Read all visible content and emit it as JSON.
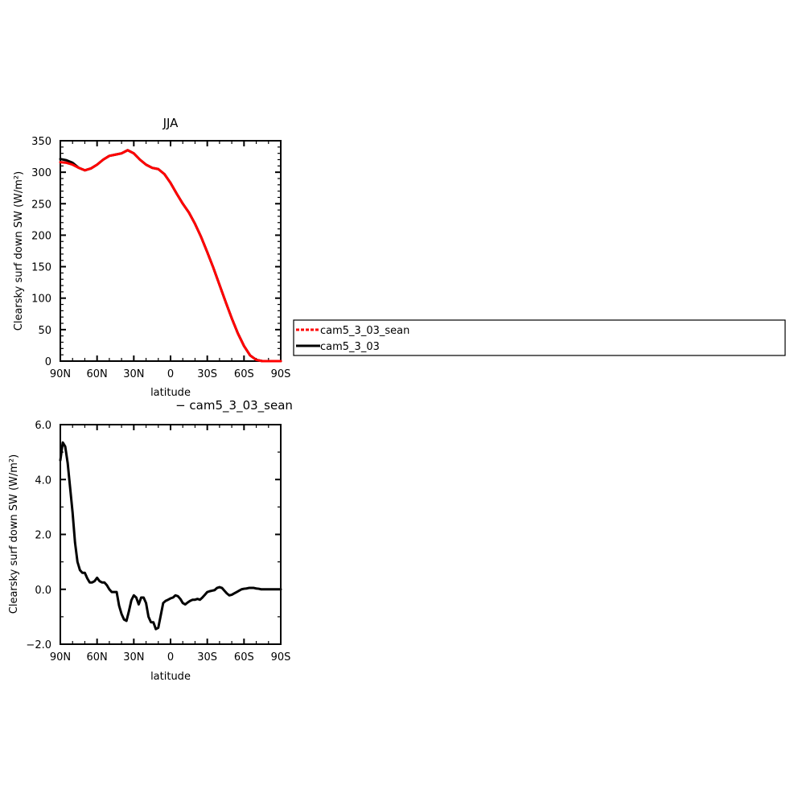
{
  "chart_data": [
    {
      "type": "line",
      "title": "JJA",
      "xlabel": "latitude",
      "ylabel": "Clearsky surf down SW (W/m²)",
      "xlim": [
        90,
        -90
      ],
      "ylim": [
        0,
        350
      ],
      "xticks": [
        90,
        60,
        30,
        0,
        -30,
        -60,
        -90
      ],
      "xtick_labels": [
        "90N",
        "60N",
        "30N",
        "0",
        "30S",
        "60S",
        "90S"
      ],
      "yticks": [
        0,
        50,
        100,
        150,
        200,
        250,
        300,
        350
      ],
      "ytick_labels": [
        "0",
        "50",
        "100",
        "150",
        "200",
        "250",
        "300",
        "350"
      ],
      "series": [
        {
          "name": "cam5_3_03_sean",
          "color": "#ff0000",
          "x": [
            90,
            85,
            80,
            75,
            70,
            65,
            60,
            55,
            50,
            45,
            40,
            35,
            30,
            25,
            20,
            15,
            10,
            5,
            0,
            -5,
            -10,
            -15,
            -20,
            -25,
            -30,
            -35,
            -40,
            -45,
            -50,
            -55,
            -60,
            -65,
            -70,
            -75,
            -80,
            -85,
            -90
          ],
          "values": [
            316,
            315,
            312,
            307,
            303,
            306,
            312,
            320,
            326,
            328,
            330,
            335,
            330,
            320,
            312,
            307,
            305,
            297,
            283,
            266,
            250,
            236,
            218,
            197,
            173,
            148,
            121,
            94,
            68,
            44,
            24,
            9,
            2,
            0,
            0,
            0,
            0
          ]
        },
        {
          "name": "cam5_3_03",
          "color": "#000000",
          "x": [
            90,
            85,
            80,
            75,
            70,
            65,
            60,
            55,
            50,
            45,
            40,
            35,
            30,
            25,
            20,
            15,
            10,
            5,
            0,
            -5,
            -10,
            -15,
            -20,
            -25,
            -30,
            -35,
            -40,
            -45,
            -50,
            -55,
            -60,
            -65,
            -70,
            -75,
            -80,
            -85,
            -90
          ],
          "values": [
            321,
            319,
            315,
            307,
            303,
            306,
            312,
            320,
            326,
            328,
            330,
            335,
            330,
            320,
            312,
            307,
            305,
            297,
            283,
            266,
            250,
            236,
            218,
            197,
            173,
            148,
            121,
            94,
            68,
            44,
            24,
            9,
            2,
            0,
            0,
            0,
            0
          ]
        }
      ],
      "legend": {
        "placement": "right",
        "entries": [
          "cam5_3_03_sean",
          "cam5_3_03"
        ]
      }
    },
    {
      "type": "line",
      "title": "− cam5_3_03_sean",
      "xlabel": "latitude",
      "ylabel": "Clearsky surf down SW (W/m²)",
      "xlim": [
        90,
        -90
      ],
      "ylim": [
        -2.0,
        6.0
      ],
      "xticks": [
        90,
        60,
        30,
        0,
        -30,
        -60,
        -90
      ],
      "xtick_labels": [
        "90N",
        "60N",
        "30N",
        "0",
        "30S",
        "60S",
        "90S"
      ],
      "yticks": [
        -2.0,
        0.0,
        2.0,
        4.0,
        6.0
      ],
      "ytick_labels": [
        "−2.0",
        "0.0",
        "2.0",
        "4.0",
        "6.0"
      ],
      "series": [
        {
          "color": "#000000",
          "x": [
            90,
            88,
            86,
            84,
            82,
            80,
            78,
            76,
            74,
            72,
            70,
            68,
            66,
            64,
            62,
            60,
            58,
            56,
            54,
            52,
            50,
            48,
            46,
            44,
            42,
            40,
            38,
            36,
            34,
            32,
            30,
            28,
            26,
            24,
            22,
            20,
            18,
            16,
            14,
            12,
            10,
            8,
            6,
            4,
            2,
            0,
            -2,
            -4,
            -6,
            -8,
            -10,
            -12,
            -14,
            -16,
            -18,
            -20,
            -22,
            -24,
            -26,
            -28,
            -30,
            -32,
            -34,
            -36,
            -38,
            -40,
            -42,
            -44,
            -46,
            -48,
            -50,
            -52,
            -54,
            -56,
            -58,
            -60,
            -62,
            -64,
            -66,
            -68,
            -70,
            -72,
            -74,
            -76,
            -78,
            -80,
            -82,
            -84,
            -86,
            -88,
            -90
          ],
          "values": [
            4.7,
            5.35,
            5.2,
            4.6,
            3.7,
            2.8,
            1.7,
            1.0,
            0.7,
            0.6,
            0.6,
            0.4,
            0.25,
            0.25,
            0.3,
            0.42,
            0.3,
            0.25,
            0.25,
            0.15,
            0.0,
            -0.1,
            -0.1,
            -0.1,
            -0.6,
            -0.9,
            -1.1,
            -1.15,
            -0.8,
            -0.4,
            -0.22,
            -0.3,
            -0.55,
            -0.3,
            -0.3,
            -0.5,
            -1.0,
            -1.2,
            -1.2,
            -1.45,
            -1.4,
            -0.95,
            -0.5,
            -0.42,
            -0.38,
            -0.33,
            -0.3,
            -0.22,
            -0.25,
            -0.35,
            -0.5,
            -0.55,
            -0.48,
            -0.42,
            -0.38,
            -0.38,
            -0.35,
            -0.38,
            -0.3,
            -0.2,
            -0.1,
            -0.07,
            -0.05,
            -0.03,
            0.05,
            0.08,
            0.05,
            -0.05,
            -0.15,
            -0.22,
            -0.2,
            -0.15,
            -0.1,
            -0.05,
            0.0,
            0.02,
            0.03,
            0.05,
            0.05,
            0.05,
            0.03,
            0.02,
            0.0,
            0.0,
            0.0,
            0.0,
            0.0,
            0.0,
            0.0,
            0.0,
            0.0
          ]
        }
      ]
    }
  ]
}
